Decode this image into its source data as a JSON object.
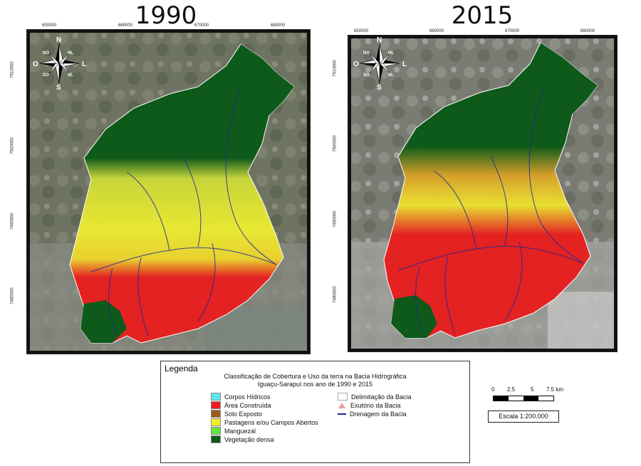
{
  "maps": [
    {
      "year": "1990",
      "x_ticks": [
        "650000",
        "660000",
        "670000",
        "680000"
      ],
      "y_ticks": [
        "7510000",
        "7500000",
        "7490000",
        "7480000"
      ]
    },
    {
      "year": "2015",
      "x_ticks": [
        "650000",
        "660000",
        "670000",
        "680000"
      ],
      "y_ticks": [
        "7510000",
        "7500000",
        "7490000",
        "7480000"
      ]
    }
  ],
  "compass": {
    "n": "N",
    "s": "S",
    "e": "L",
    "w": "O",
    "ne": "NL",
    "nw": "NO",
    "se": "SL",
    "sw": "SO"
  },
  "legend": {
    "title": "Legenda",
    "subtitle_line1": "Classificação de Cobertura e Uso da terra na Bacia Hidrográfica",
    "subtitle_line2": "Iguaçu-Sarapuí nos ano de 1990 e 2015",
    "classes": [
      {
        "label": "Corpos Hídricos",
        "color": "#5fe8ef"
      },
      {
        "label": "Área Construída",
        "color": "#ee1c1c"
      },
      {
        "label": "Solo Exposto",
        "color": "#9a5a1c"
      },
      {
        "label": "Pastagens e/ou Campos Abertos",
        "color": "#f2ef2a"
      },
      {
        "label": "Manguezal",
        "color": "#5fe83c"
      },
      {
        "label": "Vegetação densa",
        "color": "#0c5a18"
      }
    ],
    "symbols": [
      {
        "label": "Delimitação da Bacia"
      },
      {
        "label": "Exutório da Bacia"
      },
      {
        "label": "Drenagem da Bacia"
      }
    ]
  },
  "scale": {
    "ticks": [
      "0",
      "2.5",
      "5",
      "7.5 km"
    ],
    "text": "Escala 1:200.000"
  }
}
